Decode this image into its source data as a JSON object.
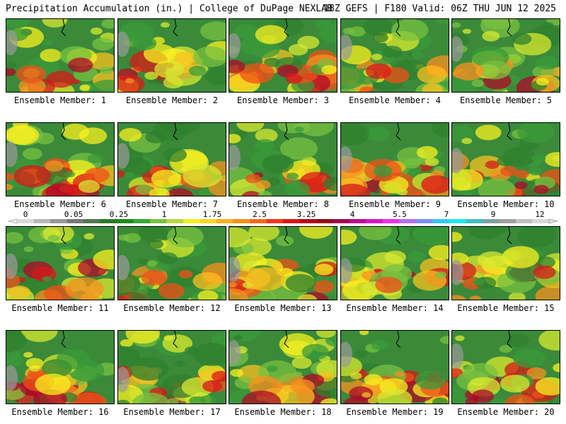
{
  "header": {
    "title_left": "Precipitation Accumulation (in.) | College of DuPage NEXLAB",
    "title_right": "18Z GEFS | F180 Valid: 06Z THU JUN 12 2025"
  },
  "panels": [
    {
      "label": "Ensemble Member: 1"
    },
    {
      "label": "Ensemble Member: 2"
    },
    {
      "label": "Ensemble Member: 3"
    },
    {
      "label": "Ensemble Member: 4"
    },
    {
      "label": "Ensemble Member: 5"
    },
    {
      "label": "Ensemble Member: 6"
    },
    {
      "label": "Ensemble Member: 7"
    },
    {
      "label": "Ensemble Member: 8"
    },
    {
      "label": "Ensemble Member: 9"
    },
    {
      "label": "Ensemble Member: 10"
    },
    {
      "label": "Ensemble Member: 11"
    },
    {
      "label": "Ensemble Member: 12"
    },
    {
      "label": "Ensemble Member: 13"
    },
    {
      "label": "Ensemble Member: 14"
    },
    {
      "label": "Ensemble Member: 15"
    },
    {
      "label": "Ensemble Member: 16"
    },
    {
      "label": "Ensemble Member: 17"
    },
    {
      "label": "Ensemble Member: 18"
    },
    {
      "label": "Ensemble Member: 19"
    },
    {
      "label": "Ensemble Member: 20"
    }
  ],
  "colorbar": {
    "tick_labels": [
      "0",
      "0.05",
      "0.25",
      "1",
      "1.75",
      "2.5",
      "3.25",
      "4",
      "5.5",
      "7",
      "9",
      "12"
    ],
    "colors": [
      "#d8d8d8",
      "#b8b8b8",
      "#989898",
      "#787878",
      "#4e7a4e",
      "#2a7a2a",
      "#1e8a1e",
      "#38a838",
      "#7cc040",
      "#b8d840",
      "#f0f020",
      "#f8d820",
      "#f8b020",
      "#f89018",
      "#f86818",
      "#f03818",
      "#d81818",
      "#b80818",
      "#980818",
      "#a00850",
      "#c00890",
      "#e010c8",
      "#f030f0",
      "#b070f0",
      "#7890f8",
      "#30c8f8",
      "#20e8e8",
      "#40c0c0",
      "#80a0a0",
      "#a0a0a0",
      "#c0c0c0",
      "#d8d8d8"
    ]
  }
}
